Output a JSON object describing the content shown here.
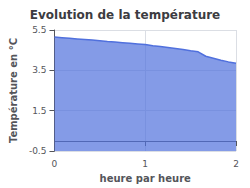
{
  "chart_data": {
    "type": "area",
    "title": "Evolution de la température",
    "xlabel": "heure par heure",
    "ylabel": "Température en °C",
    "x": [
      0,
      0.0833,
      0.1667,
      0.25,
      0.3333,
      0.4167,
      0.5,
      0.5833,
      0.6667,
      0.75,
      0.8333,
      0.9167,
      1.0,
      1.0833,
      1.1667,
      1.25,
      1.3333,
      1.4167,
      1.5,
      1.5833,
      1.6667,
      1.75,
      1.8333,
      1.9167,
      2.0
    ],
    "values": [
      5.15,
      5.12,
      5.09,
      5.06,
      5.03,
      5.0,
      4.97,
      4.93,
      4.9,
      4.87,
      4.84,
      4.81,
      4.78,
      4.72,
      4.68,
      4.63,
      4.58,
      4.53,
      4.47,
      4.42,
      4.2,
      4.1,
      4.0,
      3.92,
      3.85
    ],
    "xlim": [
      0,
      2
    ],
    "xticks": [
      0,
      1,
      2
    ],
    "ylim": [
      -0.5,
      5.5
    ],
    "yticks": [
      -0.5,
      1.5,
      3.5,
      5.5
    ],
    "grid": true
  }
}
